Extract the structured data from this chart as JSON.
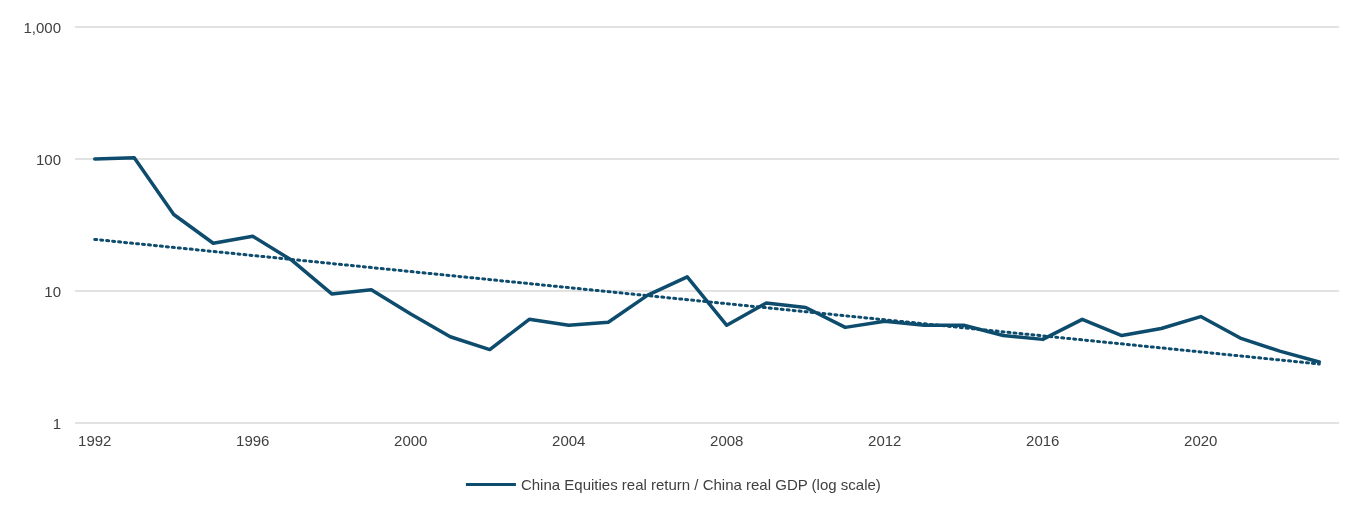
{
  "chart_data": {
    "type": "line",
    "xlim": [
      1991.5,
      2023.5
    ],
    "xticks": [
      1992,
      1996,
      2000,
      2004,
      2008,
      2012,
      2016,
      2020
    ],
    "ylim": [
      1,
      1000
    ],
    "yticks": [
      1,
      10,
      100,
      {
        "value": 1000,
        "label": "1,000"
      }
    ],
    "log": "y",
    "grid": "y",
    "legend": "bottom",
    "marker": "none",
    "series": [
      {
        "name": "China Equities real return / China real GDP (log scale)",
        "color": "#0e4c6e",
        "line_style": "solid",
        "x": [
          1992,
          1993,
          1994,
          1995,
          1996,
          1997,
          1998,
          1999,
          2000,
          2001,
          2002,
          2003,
          2004,
          2005,
          2006,
          2007,
          2008,
          2009,
          2010,
          2011,
          2012,
          2013,
          2014,
          2015,
          2016,
          2017,
          2018,
          2019,
          2020,
          2021,
          2022,
          2023
        ],
        "values": [
          100,
          102,
          38,
          23,
          26,
          17,
          9.5,
          10.2,
          6.7,
          4.5,
          3.6,
          6.1,
          5.5,
          5.8,
          9.3,
          12.8,
          5.5,
          8.1,
          7.5,
          5.3,
          5.9,
          5.5,
          5.5,
          4.6,
          4.3,
          6.1,
          4.6,
          5.2,
          6.4,
          4.4,
          3.5,
          2.9
        ]
      },
      {
        "type": "line",
        "color": "#0e4c6e",
        "line_style": "dotted",
        "x": [
          1992,
          2023
        ],
        "values": [
          24.6,
          2.8
        ]
      }
    ]
  }
}
